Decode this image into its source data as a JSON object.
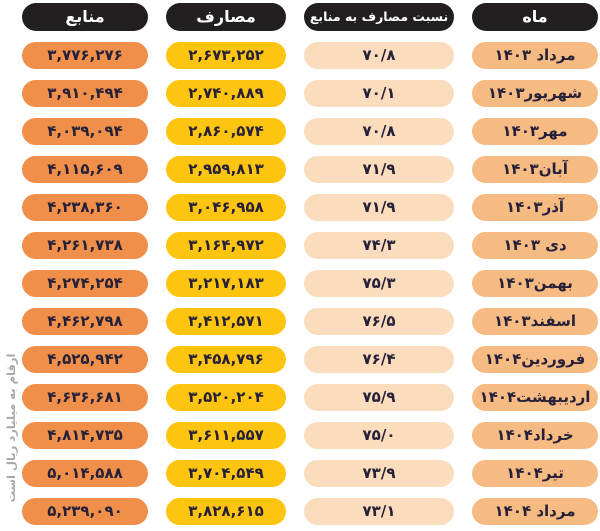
{
  "table": {
    "headers": {
      "month": "ماه",
      "ratio": "نسبت مصارف به منابع",
      "expenses": "مصارف",
      "resources": "منابع"
    },
    "rows": [
      {
        "month": "مرداد ۱۴۰۳",
        "ratio": "۷۰/۸",
        "expenses": "۲,۶۷۳,۲۵۲",
        "resources": "۳,۷۷۶,۲۷۶"
      },
      {
        "month": "شهریور۱۴۰۳",
        "ratio": "۷۰/۱",
        "expenses": "۲,۷۴۰,۸۸۹",
        "resources": "۳,۹۱۰,۴۹۴"
      },
      {
        "month": "مهر۱۴۰۳",
        "ratio": "۷۰/۸",
        "expenses": "۲,۸۶۰,۵۷۴",
        "resources": "۴,۰۳۹,۰۹۴"
      },
      {
        "month": "آبان۱۴۰۳",
        "ratio": "۷۱/۹",
        "expenses": "۲,۹۵۹,۸۱۳",
        "resources": "۴,۱۱۵,۶۰۹"
      },
      {
        "month": "آذر۱۴۰۳",
        "ratio": "۷۱/۹",
        "expenses": "۳,۰۴۶,۹۵۸",
        "resources": "۴,۲۳۸,۳۶۰"
      },
      {
        "month": "دی ۱۴۰۳",
        "ratio": "۷۴/۳",
        "expenses": "۳,۱۶۴,۹۷۲",
        "resources": "۴,۲۶۱,۷۳۸"
      },
      {
        "month": "بهمن۱۴۰۳",
        "ratio": "۷۵/۳",
        "expenses": "۳,۲۱۷,۱۸۳",
        "resources": "۴,۲۷۴,۲۵۴"
      },
      {
        "month": "اسفند۱۴۰۳",
        "ratio": "۷۶/۵",
        "expenses": "۳,۴۱۲,۵۷۱",
        "resources": "۴,۴۶۲,۷۹۸"
      },
      {
        "month": "فروردین۱۴۰۴",
        "ratio": "۷۶/۴",
        "expenses": "۳,۴۵۸,۷۹۶",
        "resources": "۴,۵۲۵,۹۴۲"
      },
      {
        "month": "اردیبهشت۱۴۰۴",
        "ratio": "۷۵/۹",
        "expenses": "۳,۵۲۰,۲۰۴",
        "resources": "۴,۶۳۶,۶۸۱"
      },
      {
        "month": "خرداد۱۴۰۴",
        "ratio": "۷۵/۰",
        "expenses": "۳,۶۱۱,۵۵۷",
        "resources": "۴,۸۱۴,۷۳۵"
      },
      {
        "month": "تیر۱۴۰۴",
        "ratio": "۷۳/۹",
        "expenses": "۳,۷۰۴,۵۴۹",
        "resources": "۵,۰۱۴,۵۸۸"
      },
      {
        "month": "مرداد ۱۴۰۴",
        "ratio": "۷۳/۱",
        "expenses": "۳,۸۲۸,۶۱۵",
        "resources": "۵,۲۳۹,۰۹۰"
      }
    ]
  },
  "footnote": "ارقام به میلیارد ریال است",
  "colors": {
    "header_bg": "#231f20",
    "header_text": "#ffffff",
    "resources_pill": "#ef8f4a",
    "expenses_pill": "#fdc50f",
    "ratio_pill": "#fbdcbd",
    "month_pill": "#f6ba83",
    "cell_text": "#262138",
    "note_text": "#a7a9ac"
  },
  "chart_data": {
    "type": "table",
    "title": "",
    "columns": [
      "ماه",
      "نسبت مصارف به منابع",
      "مصارف",
      "منابع"
    ],
    "months": [
      "مرداد ۱۴۰۳",
      "شهریور۱۴۰۳",
      "مهر۱۴۰۳",
      "آبان۱۴۰۳",
      "آذر۱۴۰۳",
      "دی ۱۴۰۳",
      "بهمن۱۴۰۳",
      "اسفند۱۴۰۳",
      "فروردین۱۴۰۴",
      "اردیبهشت۱۴۰۴",
      "خرداد۱۴۰۴",
      "تیر۱۴۰۴",
      "مرداد ۱۴۰۴"
    ],
    "series": [
      {
        "name": "منابع",
        "values": [
          3776276,
          3910494,
          4039094,
          4115609,
          4238360,
          4261738,
          4274254,
          4462798,
          4525942,
          4636681,
          4814735,
          5014588,
          5239090
        ]
      },
      {
        "name": "مصارف",
        "values": [
          2673252,
          2740889,
          2860574,
          2959813,
          3046958,
          3164972,
          3217183,
          3412571,
          3458796,
          3520204,
          3611557,
          3704549,
          3828615
        ]
      },
      {
        "name": "نسبت مصارف به منابع",
        "values": [
          70.8,
          70.1,
          70.8,
          71.9,
          71.9,
          74.3,
          75.3,
          76.5,
          76.4,
          75.9,
          75.0,
          73.9,
          73.1
        ]
      }
    ],
    "note": "ارقام به میلیارد ریال است",
    "unit": "میلیارد ریال"
  }
}
